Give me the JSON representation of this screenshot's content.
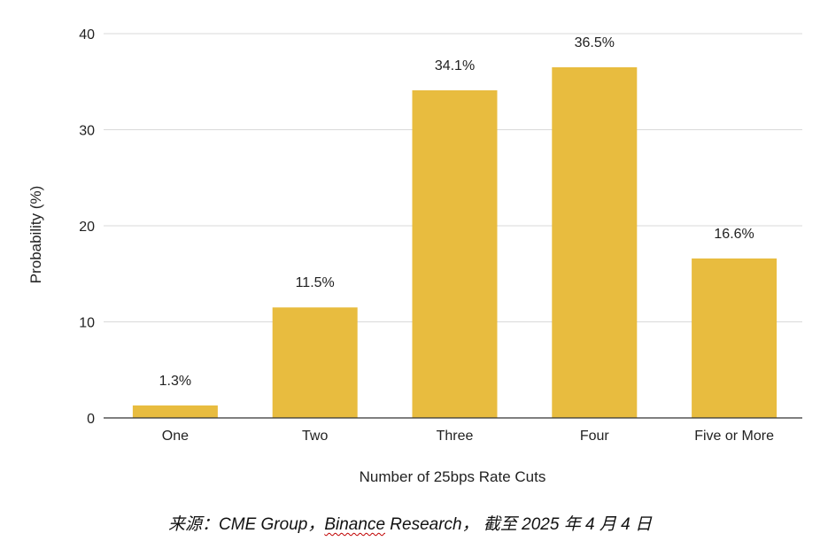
{
  "chart_data": {
    "type": "bar",
    "categories": [
      "One",
      "Two",
      "Three",
      "Four",
      "Five or More"
    ],
    "values": [
      1.3,
      11.5,
      34.1,
      36.5,
      16.6
    ],
    "data_labels": [
      "1.3%",
      "11.5%",
      "34.1%",
      "36.5%",
      "16.6%"
    ],
    "title": "",
    "xlabel": "Number of 25bps Rate Cuts",
    "ylabel": "Probability (%)",
    "ylim": [
      0,
      40
    ],
    "yticks": [
      "0",
      "10",
      "20",
      "30",
      "40"
    ],
    "grid": true,
    "bar_color": "#e8bc3f"
  },
  "source": {
    "prefix": "来源：CME Group，",
    "highlight": "Binance",
    "suffix": " Research， 截至 2025 年 4 月 4 日"
  }
}
